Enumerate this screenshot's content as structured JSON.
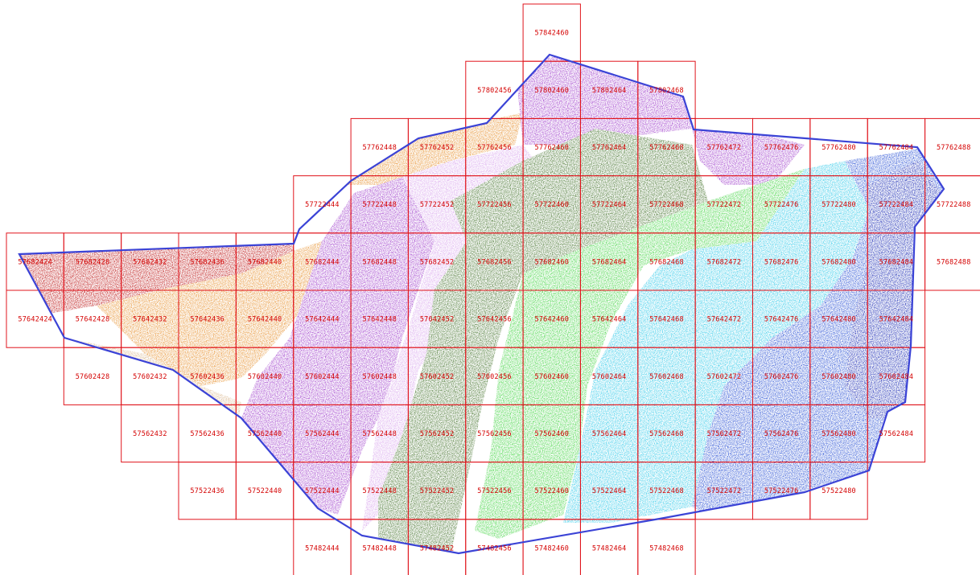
{
  "map": {
    "colors": {
      "grid": "#e0141c",
      "boundary": "#3b43d6",
      "label": "#d40000",
      "zone_red": "#b80d0d",
      "zone_orange": "#e58a22",
      "zone_tan": "#d9b48a",
      "zone_purple": "#9b35c9",
      "zone_lilac": "#d7a2ec",
      "zone_darkgreen": "#3d6d24",
      "zone_green": "#3ad23a",
      "zone_cyan": "#27c7e8",
      "zone_blue": "#1d46d1",
      "zone_navy": "#1020b0"
    },
    "tiles": [
      {
        "col": 9,
        "row": 0,
        "label": "57842460"
      },
      {
        "col": 8,
        "row": 1,
        "label": "57802456"
      },
      {
        "col": 9,
        "row": 1,
        "label": "57802460"
      },
      {
        "col": 10,
        "row": 1,
        "label": "57802464"
      },
      {
        "col": 11,
        "row": 1,
        "label": "57802468"
      },
      {
        "col": 6,
        "row": 2,
        "label": "57762448"
      },
      {
        "col": 7,
        "row": 2,
        "label": "57762452"
      },
      {
        "col": 8,
        "row": 2,
        "label": "57762456"
      },
      {
        "col": 9,
        "row": 2,
        "label": "57762460"
      },
      {
        "col": 10,
        "row": 2,
        "label": "57762464"
      },
      {
        "col": 11,
        "row": 2,
        "label": "57762468"
      },
      {
        "col": 12,
        "row": 2,
        "label": "57762472"
      },
      {
        "col": 13,
        "row": 2,
        "label": "57762476"
      },
      {
        "col": 14,
        "row": 2,
        "label": "57762480"
      },
      {
        "col": 15,
        "row": 2,
        "label": "57762484"
      },
      {
        "col": 16,
        "row": 2,
        "label": "57762488"
      },
      {
        "col": 5,
        "row": 3,
        "label": "57722444"
      },
      {
        "col": 6,
        "row": 3,
        "label": "57722448"
      },
      {
        "col": 7,
        "row": 3,
        "label": "57722452"
      },
      {
        "col": 8,
        "row": 3,
        "label": "57722456"
      },
      {
        "col": 9,
        "row": 3,
        "label": "57722460"
      },
      {
        "col": 10,
        "row": 3,
        "label": "57722464"
      },
      {
        "col": 11,
        "row": 3,
        "label": "57722468"
      },
      {
        "col": 12,
        "row": 3,
        "label": "57722472"
      },
      {
        "col": 13,
        "row": 3,
        "label": "57722476"
      },
      {
        "col": 14,
        "row": 3,
        "label": "57722480"
      },
      {
        "col": 15,
        "row": 3,
        "label": "57722484"
      },
      {
        "col": 16,
        "row": 3,
        "label": "57722488"
      },
      {
        "col": 0,
        "row": 4,
        "label": "57682424"
      },
      {
        "col": 1,
        "row": 4,
        "label": "57682428"
      },
      {
        "col": 2,
        "row": 4,
        "label": "57682432"
      },
      {
        "col": 3,
        "row": 4,
        "label": "57682436"
      },
      {
        "col": 4,
        "row": 4,
        "label": "57682440"
      },
      {
        "col": 5,
        "row": 4,
        "label": "57682444"
      },
      {
        "col": 6,
        "row": 4,
        "label": "57682448"
      },
      {
        "col": 7,
        "row": 4,
        "label": "57682452"
      },
      {
        "col": 8,
        "row": 4,
        "label": "57682456"
      },
      {
        "col": 9,
        "row": 4,
        "label": "57682460"
      },
      {
        "col": 10,
        "row": 4,
        "label": "57682464"
      },
      {
        "col": 11,
        "row": 4,
        "label": "57682468"
      },
      {
        "col": 12,
        "row": 4,
        "label": "57682472"
      },
      {
        "col": 13,
        "row": 4,
        "label": "57682476"
      },
      {
        "col": 14,
        "row": 4,
        "label": "57682480"
      },
      {
        "col": 15,
        "row": 4,
        "label": "57682484"
      },
      {
        "col": 16,
        "row": 4,
        "label": "57682488"
      },
      {
        "col": 0,
        "row": 5,
        "label": "57642424"
      },
      {
        "col": 1,
        "row": 5,
        "label": "57642428"
      },
      {
        "col": 2,
        "row": 5,
        "label": "57642432"
      },
      {
        "col": 3,
        "row": 5,
        "label": "57642436"
      },
      {
        "col": 4,
        "row": 5,
        "label": "57642440"
      },
      {
        "col": 5,
        "row": 5,
        "label": "57642444"
      },
      {
        "col": 6,
        "row": 5,
        "label": "57642448"
      },
      {
        "col": 7,
        "row": 5,
        "label": "57642452"
      },
      {
        "col": 8,
        "row": 5,
        "label": "57642456"
      },
      {
        "col": 9,
        "row": 5,
        "label": "57642460"
      },
      {
        "col": 10,
        "row": 5,
        "label": "57642464"
      },
      {
        "col": 11,
        "row": 5,
        "label": "57642468"
      },
      {
        "col": 12,
        "row": 5,
        "label": "57642472"
      },
      {
        "col": 13,
        "row": 5,
        "label": "57642476"
      },
      {
        "col": 14,
        "row": 5,
        "label": "57642480"
      },
      {
        "col": 15,
        "row": 5,
        "label": "57642484"
      },
      {
        "col": 1,
        "row": 6,
        "label": "57602428"
      },
      {
        "col": 2,
        "row": 6,
        "label": "57602432"
      },
      {
        "col": 3,
        "row": 6,
        "label": "57602436"
      },
      {
        "col": 4,
        "row": 6,
        "label": "57602440"
      },
      {
        "col": 5,
        "row": 6,
        "label": "57602444"
      },
      {
        "col": 6,
        "row": 6,
        "label": "57602448"
      },
      {
        "col": 7,
        "row": 6,
        "label": "57602452"
      },
      {
        "col": 8,
        "row": 6,
        "label": "57602456"
      },
      {
        "col": 9,
        "row": 6,
        "label": "57602460"
      },
      {
        "col": 10,
        "row": 6,
        "label": "57602464"
      },
      {
        "col": 11,
        "row": 6,
        "label": "57602468"
      },
      {
        "col": 12,
        "row": 6,
        "label": "57602472"
      },
      {
        "col": 13,
        "row": 6,
        "label": "57602476"
      },
      {
        "col": 14,
        "row": 6,
        "label": "57602480"
      },
      {
        "col": 15,
        "row": 6,
        "label": "57602484"
      },
      {
        "col": 2,
        "row": 7,
        "label": "57562432"
      },
      {
        "col": 3,
        "row": 7,
        "label": "57562436"
      },
      {
        "col": 4,
        "row": 7,
        "label": "57562440"
      },
      {
        "col": 5,
        "row": 7,
        "label": "57562444"
      },
      {
        "col": 6,
        "row": 7,
        "label": "57562448"
      },
      {
        "col": 7,
        "row": 7,
        "label": "57562452"
      },
      {
        "col": 8,
        "row": 7,
        "label": "57562456"
      },
      {
        "col": 9,
        "row": 7,
        "label": "57562460"
      },
      {
        "col": 10,
        "row": 7,
        "label": "57562464"
      },
      {
        "col": 11,
        "row": 7,
        "label": "57562468"
      },
      {
        "col": 12,
        "row": 7,
        "label": "57562472"
      },
      {
        "col": 13,
        "row": 7,
        "label": "57562476"
      },
      {
        "col": 14,
        "row": 7,
        "label": "57562480"
      },
      {
        "col": 15,
        "row": 7,
        "label": "57562484"
      },
      {
        "col": 3,
        "row": 8,
        "label": "57522436"
      },
      {
        "col": 4,
        "row": 8,
        "label": "57522440"
      },
      {
        "col": 5,
        "row": 8,
        "label": "57522444"
      },
      {
        "col": 6,
        "row": 8,
        "label": "57522448"
      },
      {
        "col": 7,
        "row": 8,
        "label": "57522452"
      },
      {
        "col": 8,
        "row": 8,
        "label": "57522456"
      },
      {
        "col": 9,
        "row": 8,
        "label": "57522460"
      },
      {
        "col": 10,
        "row": 8,
        "label": "57522464"
      },
      {
        "col": 11,
        "row": 8,
        "label": "57522468"
      },
      {
        "col": 12,
        "row": 8,
        "label": "57522472"
      },
      {
        "col": 13,
        "row": 8,
        "label": "57522476"
      },
      {
        "col": 14,
        "row": 8,
        "label": "57522480"
      },
      {
        "col": 5,
        "row": 9,
        "label": "57482444"
      },
      {
        "col": 6,
        "row": 9,
        "label": "57482448"
      },
      {
        "col": 7,
        "row": 9,
        "label": "57482452"
      },
      {
        "col": 8,
        "row": 9,
        "label": "57482456"
      },
      {
        "col": 9,
        "row": 9,
        "label": "57482460"
      },
      {
        "col": 10,
        "row": 9,
        "label": "57482464"
      },
      {
        "col": 11,
        "row": 9,
        "label": "57482468"
      }
    ]
  }
}
